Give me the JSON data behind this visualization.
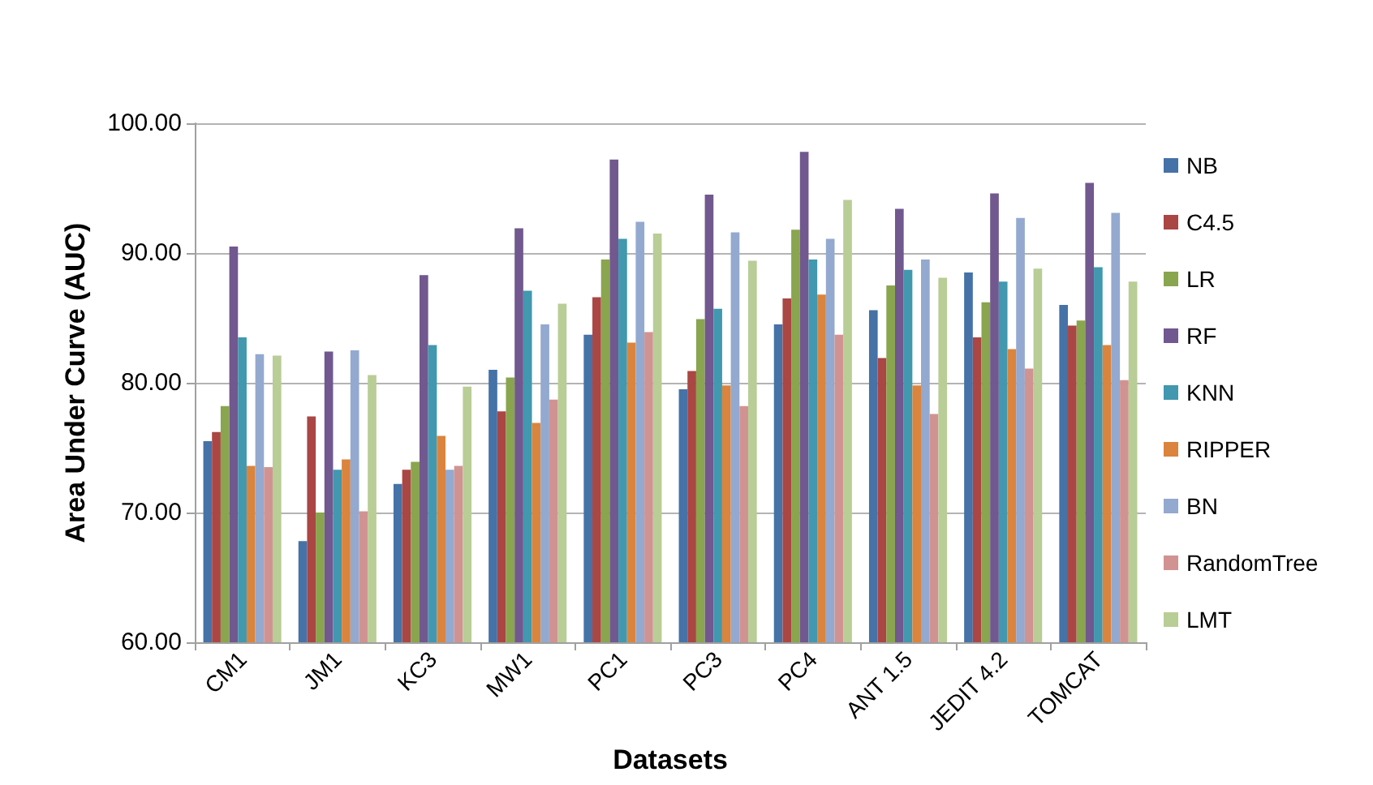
{
  "chart_data": {
    "type": "bar",
    "xlabel": "Datasets",
    "ylabel": "Area Under Curve (AUC)",
    "categories": [
      "CM1",
      "JM1",
      "KC3",
      "MW1",
      "PC1",
      "PC3",
      "PC4",
      "ANT 1.5",
      "JEDIT 4.2",
      "TOMCAT"
    ],
    "series": [
      {
        "name": "NB",
        "color": "#4572a7",
        "values": [
          75.5,
          67.8,
          72.2,
          81.0,
          83.7,
          79.5,
          84.5,
          85.6,
          88.5,
          86.0
        ]
      },
      {
        "name": "C4.5",
        "color": "#aa4643",
        "values": [
          76.2,
          77.4,
          73.3,
          77.8,
          86.6,
          80.9,
          86.5,
          81.9,
          83.5,
          84.4
        ]
      },
      {
        "name": "LR",
        "color": "#89a54e",
        "values": [
          78.2,
          70.0,
          73.9,
          80.4,
          89.5,
          84.9,
          91.8,
          87.5,
          86.2,
          84.8
        ]
      },
      {
        "name": "RF",
        "color": "#71588f",
        "values": [
          90.5,
          82.4,
          88.3,
          91.9,
          97.2,
          94.5,
          97.8,
          93.4,
          94.6,
          95.4
        ]
      },
      {
        "name": "KNN",
        "color": "#4198af",
        "values": [
          83.5,
          73.3,
          82.9,
          87.1,
          91.1,
          85.7,
          89.5,
          88.7,
          87.8,
          88.9
        ]
      },
      {
        "name": "RIPPER",
        "color": "#db843d",
        "values": [
          73.6,
          74.1,
          75.9,
          76.9,
          83.1,
          79.8,
          86.8,
          79.8,
          82.6,
          82.9
        ]
      },
      {
        "name": "BN",
        "color": "#93a9cf",
        "values": [
          82.2,
          82.5,
          73.3,
          84.5,
          92.4,
          91.6,
          91.1,
          89.5,
          92.7,
          93.1
        ]
      },
      {
        "name": "RandomTree",
        "color": "#d19392",
        "values": [
          73.5,
          70.1,
          73.6,
          78.7,
          83.9,
          78.2,
          83.7,
          77.6,
          81.1,
          80.2
        ]
      },
      {
        "name": "LMT",
        "color": "#b9cd96",
        "values": [
          82.1,
          80.6,
          79.7,
          86.1,
          91.5,
          89.4,
          94.1,
          88.1,
          88.8,
          87.8
        ]
      }
    ],
    "ylim": [
      60,
      100
    ],
    "yticks": [
      {
        "value": 60,
        "label": "60.00"
      },
      {
        "value": 70,
        "label": "70.00"
      },
      {
        "value": 80,
        "label": "80.00"
      },
      {
        "value": 90,
        "label": "90.00"
      },
      {
        "value": 100,
        "label": "100.00"
      }
    ],
    "grid": "y",
    "legend": "right"
  }
}
